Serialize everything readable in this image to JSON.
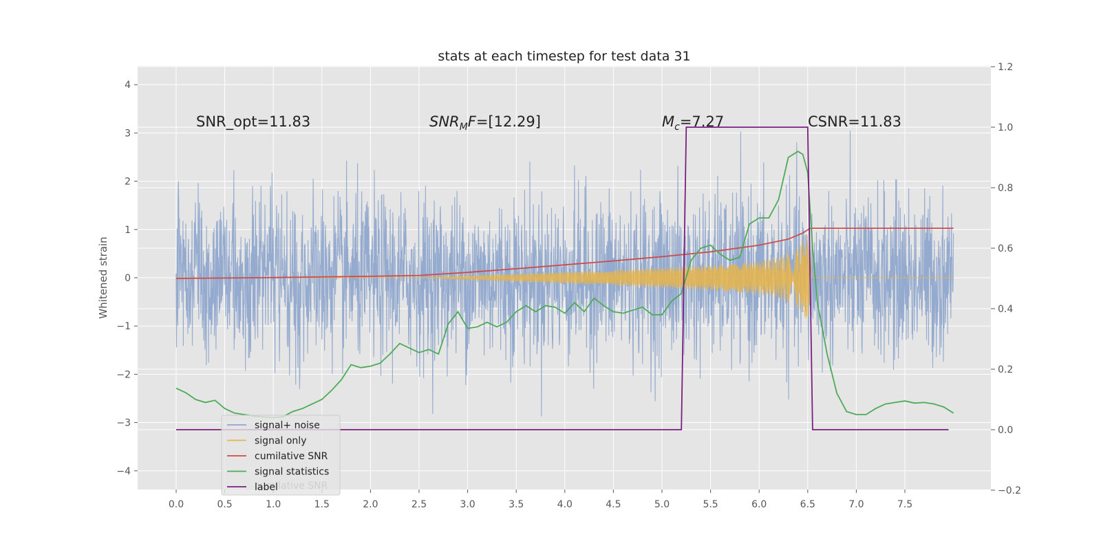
{
  "chart_data": {
    "type": "line",
    "title": "stats at each timestep for test data 31",
    "ylabel": "Whitened strain",
    "xlim": [
      -0.39,
      8.4
    ],
    "ylim": [
      -4.4,
      4.4
    ],
    "y2lim": [
      -0.2,
      1.2
    ],
    "xticks": [
      "0.0",
      "0.5",
      "1.0",
      "1.5",
      "2.0",
      "2.5",
      "3.0",
      "3.5",
      "4.0",
      "4.5",
      "5.0",
      "5.5",
      "6.0",
      "6.5",
      "7.0",
      "7.5"
    ],
    "yticks": [
      "4",
      "3",
      "2",
      "1",
      "0",
      "−1",
      "−2",
      "−3",
      "−4"
    ],
    "y2ticks": [
      "1.2",
      "1.0",
      "0.8",
      "0.6",
      "0.4",
      "0.2",
      "0.0",
      "−0.2"
    ],
    "grid": true,
    "legend_position": "lower-left",
    "annotations": {
      "snr_opt": "SNR_opt=11.83",
      "snr_mf_var": "SNR",
      "snr_mf_sub": "M",
      "snr_mf_var2": "F",
      "snr_mf_value": "=[12.29]",
      "mc_var": "M",
      "mc_sub": "c",
      "mc_value": "=7.27",
      "csnr": "CSNR=11.83"
    },
    "series": [
      {
        "name": "signal+ noise",
        "color": "#8fa6cc",
        "axis": "left",
        "noise_std": 0.85,
        "x_range": [
          0.0,
          8.0
        ]
      },
      {
        "name": "signal only",
        "color": "#e8b54a",
        "axis": "left",
        "envelope_x": [
          0.0,
          2.5,
          3.0,
          3.5,
          4.0,
          4.5,
          5.0,
          5.5,
          6.0,
          6.2,
          6.4,
          6.5,
          6.55,
          8.0
        ],
        "envelope_y": [
          0.0,
          0.0,
          0.04,
          0.08,
          0.12,
          0.16,
          0.21,
          0.26,
          0.34,
          0.42,
          0.62,
          0.9,
          0.0,
          0.0
        ]
      },
      {
        "name": "cumilative SNR",
        "color": "#cc4b4b",
        "axis": "right",
        "x": [
          0.0,
          1.0,
          2.0,
          2.5,
          3.0,
          3.5,
          4.0,
          4.5,
          5.0,
          5.5,
          6.0,
          6.3,
          6.45,
          6.52,
          6.55,
          8.0
        ],
        "y": [
          0.5,
          0.503,
          0.507,
          0.51,
          0.52,
          0.532,
          0.545,
          0.558,
          0.572,
          0.588,
          0.61,
          0.63,
          0.65,
          0.665,
          0.666,
          0.666
        ]
      },
      {
        "name": "signal statistics",
        "color": "#4daa57",
        "axis": "right",
        "x": [
          0.0,
          0.1,
          0.2,
          0.3,
          0.4,
          0.5,
          0.6,
          0.7,
          0.8,
          0.9,
          1.0,
          1.1,
          1.2,
          1.3,
          1.4,
          1.5,
          1.6,
          1.7,
          1.8,
          1.9,
          2.0,
          2.1,
          2.2,
          2.3,
          2.4,
          2.5,
          2.6,
          2.7,
          2.8,
          2.9,
          3.0,
          3.1,
          3.2,
          3.3,
          3.4,
          3.5,
          3.6,
          3.7,
          3.8,
          3.9,
          4.0,
          4.1,
          4.2,
          4.3,
          4.4,
          4.5,
          4.6,
          4.7,
          4.8,
          4.9,
          5.0,
          5.1,
          5.2,
          5.3,
          5.4,
          5.5,
          5.6,
          5.7,
          5.8,
          5.9,
          6.0,
          6.1,
          6.2,
          6.3,
          6.4,
          6.45,
          6.5,
          6.55,
          6.6,
          6.7,
          6.8,
          6.9,
          7.0,
          7.1,
          7.2,
          7.3,
          7.4,
          7.5,
          7.6,
          7.7,
          7.8,
          7.9,
          8.0
        ],
        "y": [
          0.137,
          0.122,
          0.1,
          0.09,
          0.097,
          0.07,
          0.055,
          0.05,
          0.045,
          0.042,
          0.04,
          0.043,
          0.06,
          0.07,
          0.085,
          0.1,
          0.13,
          0.165,
          0.215,
          0.205,
          0.21,
          0.22,
          0.25,
          0.285,
          0.27,
          0.255,
          0.265,
          0.25,
          0.35,
          0.39,
          0.335,
          0.34,
          0.355,
          0.34,
          0.355,
          0.39,
          0.41,
          0.39,
          0.41,
          0.405,
          0.385,
          0.42,
          0.39,
          0.435,
          0.41,
          0.39,
          0.385,
          0.395,
          0.405,
          0.38,
          0.38,
          0.425,
          0.45,
          0.56,
          0.6,
          0.61,
          0.58,
          0.56,
          0.57,
          0.68,
          0.7,
          0.7,
          0.76,
          0.9,
          0.92,
          0.91,
          0.85,
          0.6,
          0.42,
          0.25,
          0.12,
          0.06,
          0.05,
          0.05,
          0.07,
          0.085,
          0.09,
          0.095,
          0.088,
          0.09,
          0.085,
          0.075,
          0.055
        ]
      },
      {
        "name": "label",
        "color": "#7a1f7f",
        "axis": "right",
        "x": [
          0.0,
          5.2,
          5.25,
          6.5,
          6.55,
          7.95
        ],
        "y": [
          0.0,
          0.0,
          1.0,
          1.0,
          0.0,
          0.0
        ]
      }
    ],
    "legend_ghost_text": "cumilative SNR"
  }
}
